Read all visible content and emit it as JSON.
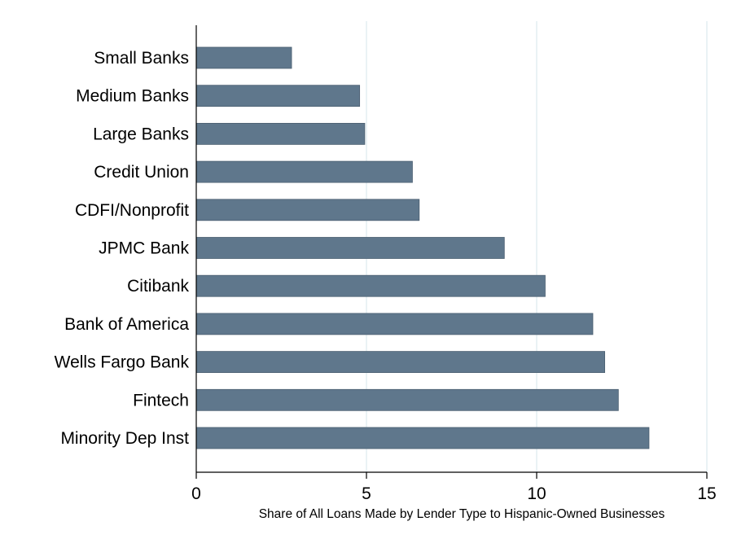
{
  "chart_data": {
    "type": "bar",
    "orientation": "horizontal",
    "title": "",
    "xlabel": "Share of All Loans Made by Lender Type to Hispanic-Owned Businesses",
    "ylabel": "",
    "xlim": [
      0,
      15
    ],
    "xticks": [
      0,
      5,
      10,
      15
    ],
    "grid": true,
    "legend": "none",
    "bar_color": "#5f778c",
    "bar_edge_color": "#4b5f71",
    "grid_color": "#dce8ee",
    "categories": [
      "Small Banks",
      "Medium Banks",
      "Large Banks",
      "Credit Union",
      "CDFI/Nonprofit",
      "JPMC Bank",
      "Citibank",
      "Bank of America",
      "Wells Fargo Bank",
      "Fintech",
      "Minority Dep Inst"
    ],
    "values": [
      2.8,
      4.8,
      4.95,
      6.35,
      6.55,
      9.05,
      10.25,
      11.65,
      12.0,
      12.4,
      13.3
    ]
  }
}
